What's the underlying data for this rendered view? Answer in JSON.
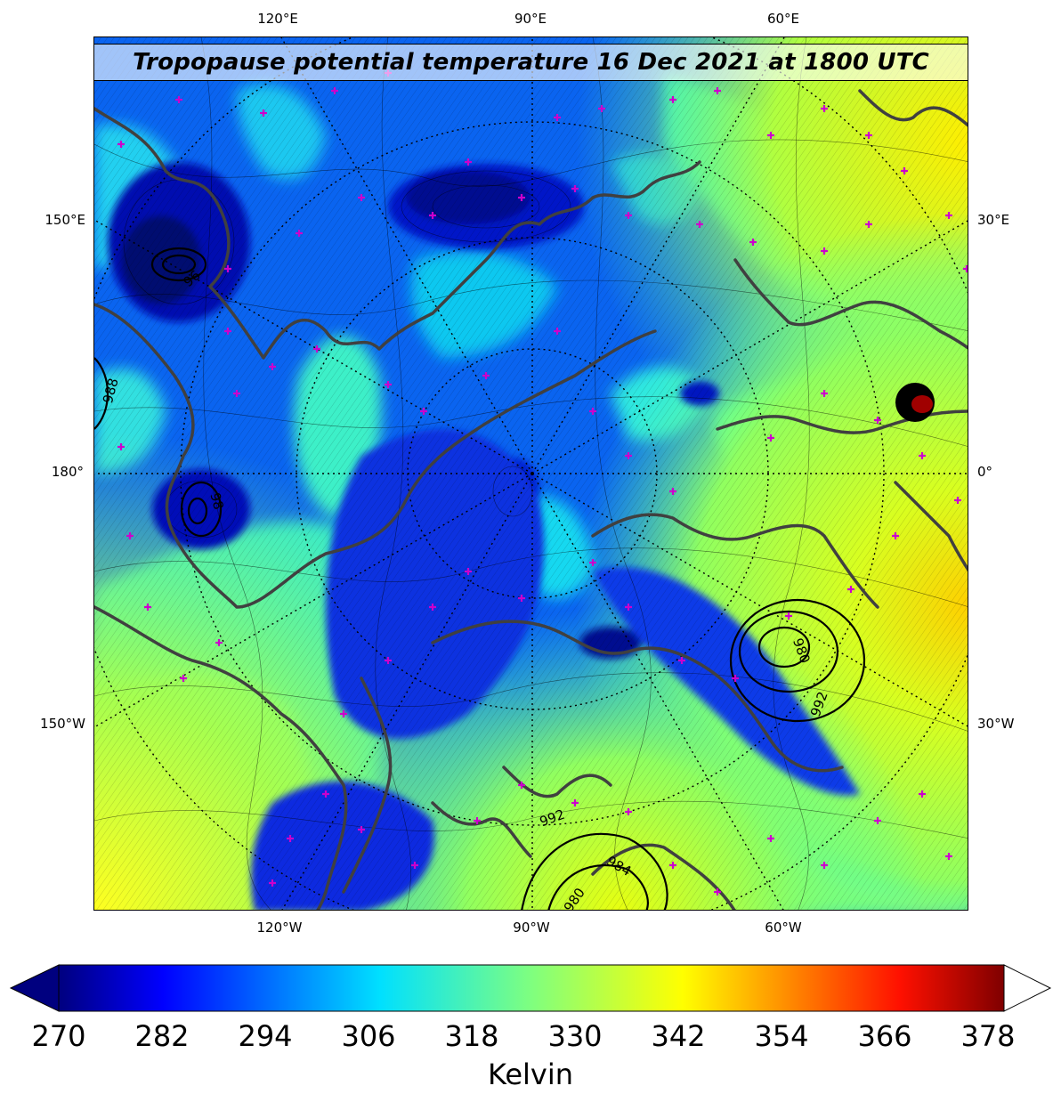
{
  "title": "Tropopause potential temperature 16 Dec 2021 at 1800 UTC",
  "longitude_labels": {
    "top": [
      "120°E",
      "90°E",
      "60°E"
    ],
    "bottom": [
      "120°W",
      "90°W",
      "60°W"
    ],
    "left": [
      "150°E",
      "180°",
      "150°W"
    ],
    "right": [
      "30°E",
      "0°",
      "30°W"
    ]
  },
  "pressure_contour_labels": [
    "988",
    "96",
    "98",
    "980",
    "992",
    "992",
    "984",
    "980"
  ],
  "colorbar": {
    "label": "Kelvin",
    "ticks": [
      "270",
      "282",
      "294",
      "306",
      "318",
      "330",
      "342",
      "354",
      "366",
      "378"
    ],
    "min": 270,
    "max": 380,
    "colormap": "jet",
    "extend": "both",
    "colors": [
      "#00007f",
      "#0000ff",
      "#007fff",
      "#00ffff",
      "#7fff7f",
      "#ffff00",
      "#ff7f00",
      "#ff0000",
      "#7f0000"
    ]
  },
  "map": {
    "projection": "north-polar-stereographic",
    "center_meridian": "90°W",
    "graticule": "dotted",
    "coastline_color": "#404040",
    "surface_station_color": "#cc00cc"
  }
}
